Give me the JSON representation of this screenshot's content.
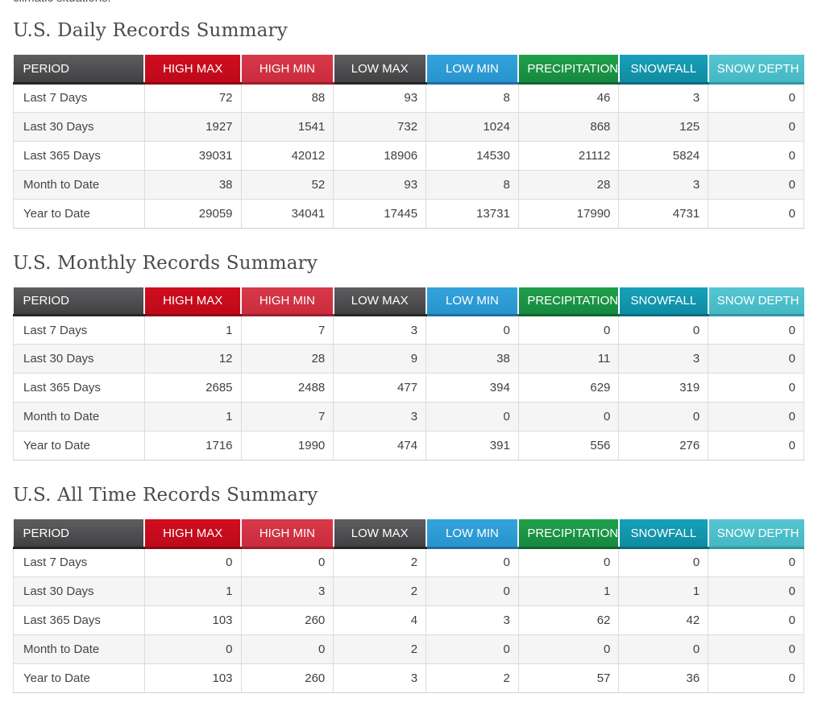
{
  "intro": {
    "tail_text": "climatic situations."
  },
  "table_columns": [
    {
      "label": "PERIOD",
      "color_key": "gray"
    },
    {
      "label": "HIGH MAX",
      "color_key": "red_dark"
    },
    {
      "label": "HIGH MIN",
      "color_key": "red_light"
    },
    {
      "label": "LOW MAX",
      "color_key": "gray"
    },
    {
      "label": "LOW MIN",
      "color_key": "blue"
    },
    {
      "label": "PRECIPITATION",
      "color_key": "green"
    },
    {
      "label": "SNOWFALL",
      "color_key": "teal_dark"
    },
    {
      "label": "SNOW DEPTH",
      "color_key": "teal_light"
    }
  ],
  "header_colors": {
    "gray": {
      "top": "#5e5e60",
      "bottom": "#414143",
      "border": "#262628"
    },
    "red_dark": {
      "top": "#d00d1e",
      "bottom": "#bd0a1a",
      "border": "#8e0813"
    },
    "red_light": {
      "top": "#d8394a",
      "bottom": "#c92c3c",
      "border": "#9c1f2c"
    },
    "blue": {
      "top": "#34a3dc",
      "bottom": "#2894cd",
      "border": "#1d6f9e"
    },
    "green": {
      "top": "#1fa04b",
      "bottom": "#16893f",
      "border": "#0f6530"
    },
    "teal_dark": {
      "top": "#16a1b9",
      "bottom": "#0f8ca1",
      "border": "#0a6b7c"
    },
    "teal_light": {
      "top": "#55c6d2",
      "bottom": "#45b8c4",
      "border": "#2f97a3"
    }
  },
  "sections": [
    {
      "title": "U.S. Daily Records Summary",
      "rows": [
        {
          "period": "Last 7 Days",
          "values": [
            "72",
            "88",
            "93",
            "8",
            "46",
            "3",
            "0"
          ]
        },
        {
          "period": "Last 30 Days",
          "values": [
            "1927",
            "1541",
            "732",
            "1024",
            "868",
            "125",
            "0"
          ]
        },
        {
          "period": "Last 365 Days",
          "values": [
            "39031",
            "42012",
            "18906",
            "14530",
            "21112",
            "5824",
            "0"
          ]
        },
        {
          "period": "Month to Date",
          "values": [
            "38",
            "52",
            "93",
            "8",
            "28",
            "3",
            "0"
          ]
        },
        {
          "period": "Year to Date",
          "values": [
            "29059",
            "34041",
            "17445",
            "13731",
            "17990",
            "4731",
            "0"
          ]
        }
      ]
    },
    {
      "title": "U.S. Monthly Records Summary",
      "rows": [
        {
          "period": "Last 7 Days",
          "values": [
            "1",
            "7",
            "3",
            "0",
            "0",
            "0",
            "0"
          ]
        },
        {
          "period": "Last 30 Days",
          "values": [
            "12",
            "28",
            "9",
            "38",
            "11",
            "3",
            "0"
          ]
        },
        {
          "period": "Last 365 Days",
          "values": [
            "2685",
            "2488",
            "477",
            "394",
            "629",
            "319",
            "0"
          ]
        },
        {
          "period": "Month to Date",
          "values": [
            "1",
            "7",
            "3",
            "0",
            "0",
            "0",
            "0"
          ]
        },
        {
          "period": "Year to Date",
          "values": [
            "1716",
            "1990",
            "474",
            "391",
            "556",
            "276",
            "0"
          ]
        }
      ]
    },
    {
      "title": "U.S. All Time Records Summary",
      "rows": [
        {
          "period": "Last 7 Days",
          "values": [
            "0",
            "0",
            "2",
            "0",
            "0",
            "0",
            "0"
          ]
        },
        {
          "period": "Last 30 Days",
          "values": [
            "1",
            "3",
            "2",
            "0",
            "1",
            "1",
            "0"
          ]
        },
        {
          "period": "Last 365 Days",
          "values": [
            "103",
            "260",
            "4",
            "3",
            "62",
            "42",
            "0"
          ]
        },
        {
          "period": "Month to Date",
          "values": [
            "0",
            "0",
            "2",
            "0",
            "0",
            "0",
            "0"
          ]
        },
        {
          "period": "Year to Date",
          "values": [
            "103",
            "260",
            "3",
            "2",
            "57",
            "36",
            "0"
          ]
        }
      ]
    }
  ]
}
